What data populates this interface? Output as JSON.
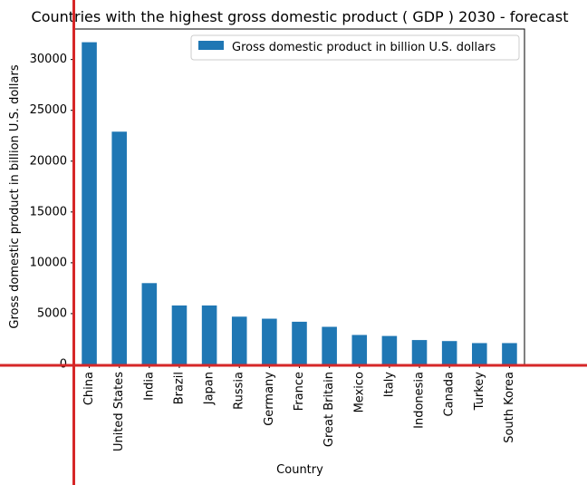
{
  "chart_data": {
    "type": "bar",
    "title": "Countries with the highest gross domestic product ( GDP ) 2030 - forecast",
    "xlabel": "Country",
    "ylabel": "Gross domestic product in billion U.S. dollars",
    "categories": [
      "China",
      "United States",
      "India",
      "Brazil",
      "Japan",
      "Russia",
      "Germany",
      "France",
      "Great Britain",
      "Mexico",
      "Italy",
      "Indonesia",
      "Canada",
      "Turkey",
      "South Korea"
    ],
    "series": [
      {
        "name": "Gross domestic product in billion U.S. dollars",
        "values": [
          31700,
          22900,
          8000,
          5800,
          5800,
          4700,
          4500,
          4200,
          3700,
          2900,
          2800,
          2400,
          2300,
          2100,
          2100
        ]
      }
    ],
    "ylim": [
      0,
      33000
    ],
    "yticks": [
      0,
      5000,
      10000,
      15000,
      20000,
      25000,
      30000
    ],
    "grid": false,
    "legend_position": "top-right",
    "colors": {
      "bar": "#1f77b4",
      "crosshair": "#d62728"
    }
  }
}
